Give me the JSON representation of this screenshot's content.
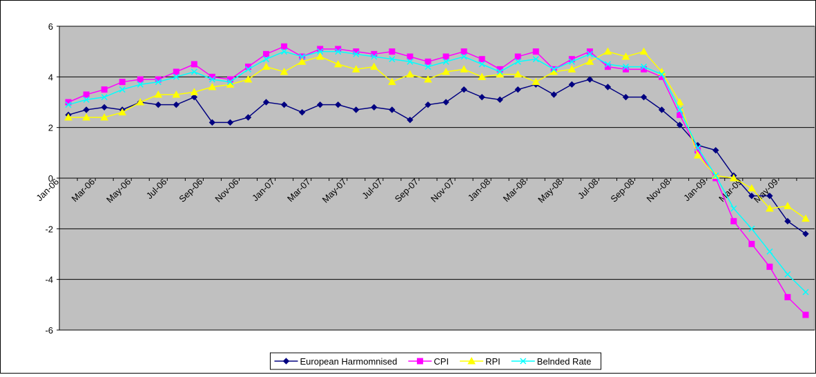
{
  "chart_data": {
    "type": "line",
    "categories": [
      "Jan-06",
      null,
      "Mar-06",
      null,
      "May-06",
      null,
      "Jul-06",
      null,
      "Sep-06",
      null,
      "Nov-06",
      null,
      "Jan-07",
      null,
      "Mar-07",
      null,
      "May-07",
      null,
      "Jul-07",
      null,
      "Sep-07",
      null,
      "Nov-07",
      null,
      "Jan-08",
      null,
      "Mar-08",
      null,
      "May-08",
      null,
      "Jul-08",
      null,
      "Sep-08",
      null,
      "Nov-08",
      null,
      "Jan-09",
      null,
      "Mar-09",
      null,
      "May-09",
      null
    ],
    "series": [
      {
        "name": "European Harmomnised",
        "color": "#000080",
        "marker": "diamond",
        "values": [
          2.5,
          2.7,
          2.8,
          2.7,
          3.0,
          2.9,
          2.9,
          3.2,
          2.2,
          2.2,
          2.4,
          3.0,
          2.9,
          2.6,
          2.9,
          2.9,
          2.7,
          2.8,
          2.7,
          2.3,
          2.9,
          3.0,
          3.5,
          3.2,
          3.1,
          3.5,
          3.7,
          3.3,
          3.7,
          3.9,
          3.6,
          3.2,
          3.2,
          2.7,
          2.1,
          1.3,
          1.1,
          0.1,
          -0.7,
          -0.7,
          -1.7,
          -2.2
        ]
      },
      {
        "name": "CPI",
        "color": "#ff00ff",
        "marker": "square",
        "values": [
          3.0,
          3.3,
          3.5,
          3.8,
          3.9,
          3.9,
          4.2,
          4.5,
          4.0,
          3.9,
          4.4,
          4.9,
          5.2,
          4.8,
          5.1,
          5.1,
          5.0,
          4.9,
          5.0,
          4.8,
          4.6,
          4.8,
          5.0,
          4.7,
          4.3,
          4.8,
          5.0,
          4.3,
          4.7,
          5.0,
          4.4,
          4.3,
          4.3,
          4.0,
          2.5,
          1.1,
          0.0,
          -1.7,
          -2.6,
          -3.5,
          -4.7,
          -5.4
        ]
      },
      {
        "name": "RPI",
        "color": "#ffff00",
        "marker": "triangle",
        "values": [
          2.4,
          2.4,
          2.4,
          2.6,
          3.0,
          3.3,
          3.3,
          3.4,
          3.6,
          3.7,
          3.9,
          4.4,
          4.2,
          4.6,
          4.8,
          4.5,
          4.3,
          4.4,
          3.8,
          4.1,
          3.9,
          4.2,
          4.3,
          4.0,
          4.1,
          4.1,
          3.8,
          4.2,
          4.3,
          4.6,
          5.0,
          4.8,
          5.0,
          4.2,
          3.0,
          0.9,
          0.1,
          0.0,
          -0.4,
          -1.2,
          -1.1,
          -1.6
        ]
      },
      {
        "name": "Belnded Rate",
        "color": "#00ffff",
        "marker": "x",
        "values": [
          2.9,
          3.1,
          3.2,
          3.5,
          3.7,
          3.8,
          4.0,
          4.2,
          3.9,
          3.8,
          4.3,
          4.7,
          5.0,
          4.8,
          5.0,
          5.0,
          4.9,
          4.8,
          4.7,
          4.6,
          4.4,
          4.6,
          4.8,
          4.5,
          4.2,
          4.6,
          4.7,
          4.3,
          4.6,
          4.9,
          4.5,
          4.4,
          4.4,
          4.1,
          2.7,
          1.2,
          0.1,
          -1.2,
          -2.0,
          -2.9,
          -3.8,
          -4.5
        ]
      }
    ],
    "ylim": [
      -6,
      6
    ],
    "yticks": [
      -6,
      -4,
      -2,
      0,
      2,
      4,
      6
    ],
    "grid": true,
    "legend": "bottom",
    "plot_background": "#c0c0c0"
  }
}
